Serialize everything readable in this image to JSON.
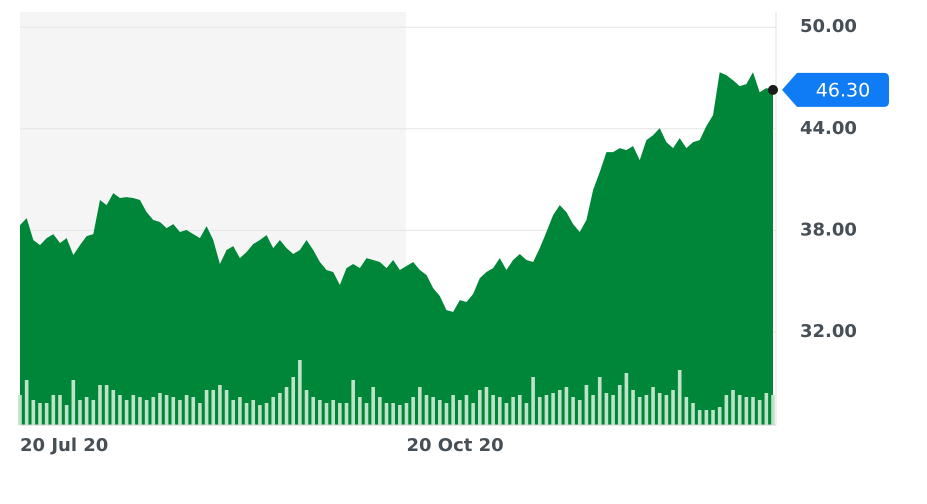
{
  "chart_data": {
    "type": "area",
    "categories": [
      "20 Jul 20",
      null,
      null,
      null,
      null,
      null,
      null,
      null,
      null,
      null,
      null,
      null,
      null,
      null,
      null,
      null,
      null,
      null,
      null,
      null,
      null,
      null,
      null,
      null,
      null,
      null,
      null,
      null,
      null,
      null,
      null,
      null,
      null,
      null,
      null,
      null,
      null,
      null,
      null,
      null,
      null,
      null,
      null,
      null,
      null,
      null,
      null,
      null,
      null,
      null,
      null,
      null,
      null,
      null,
      null,
      null,
      null,
      null,
      "20 Oct 20",
      null,
      null,
      null,
      null,
      null,
      null,
      null,
      null,
      null,
      null,
      null,
      null,
      null,
      null,
      null,
      null,
      null,
      null,
      null,
      null,
      null,
      null,
      null,
      null,
      null,
      null,
      null,
      null,
      null,
      null,
      null,
      null,
      null,
      null,
      null,
      null,
      null,
      null,
      null,
      null,
      null,
      null,
      null,
      null,
      null,
      null,
      null,
      null,
      null,
      null,
      null,
      null,
      null,
      null,
      null
    ],
    "values": [
      38.31,
      38.72,
      37.43,
      37.13,
      37.54,
      37.78,
      37.25,
      37.54,
      36.54,
      37.13,
      37.66,
      37.78,
      39.79,
      39.49,
      40.2,
      39.91,
      39.96,
      39.91,
      39.79,
      39.08,
      38.61,
      38.49,
      38.13,
      38.37,
      37.9,
      38.02,
      37.78,
      37.54,
      38.25,
      37.43,
      36.01,
      36.84,
      37.07,
      36.36,
      36.72,
      37.19,
      37.43,
      37.72,
      36.95,
      37.43,
      36.95,
      36.6,
      36.84,
      37.43,
      36.84,
      36.13,
      35.66,
      35.54,
      34.77,
      35.77,
      36.01,
      35.77,
      36.36,
      36.25,
      36.13,
      35.77,
      36.25,
      35.66,
      35.89,
      36.13,
      35.66,
      35.36,
      34.59,
      34.12,
      33.29,
      33.18,
      33.88,
      33.77,
      34.24,
      35.18,
      35.54,
      35.77,
      36.36,
      35.66,
      36.25,
      36.6,
      36.25,
      36.13,
      36.95,
      37.9,
      38.9,
      39.49,
      39.08,
      38.37,
      37.9,
      38.61,
      40.38,
      41.44,
      42.62,
      42.62,
      42.86,
      42.74,
      42.98,
      42.15,
      43.33,
      43.62,
      44.04,
      43.21,
      42.86,
      43.45,
      42.86,
      43.21,
      43.33,
      44.16,
      44.81,
      47.34,
      47.17,
      46.87,
      46.52,
      46.64,
      47.34,
      46.16,
      46.4,
      46.3
    ],
    "volume": [
      30,
      45,
      25,
      22,
      22,
      30,
      30,
      20,
      45,
      25,
      28,
      25,
      40,
      40,
      35,
      30,
      25,
      30,
      28,
      25,
      28,
      32,
      30,
      28,
      25,
      30,
      28,
      22,
      35,
      35,
      40,
      35,
      25,
      28,
      22,
      25,
      20,
      22,
      28,
      32,
      38,
      48,
      65,
      35,
      28,
      25,
      22,
      25,
      22,
      22,
      45,
      28,
      22,
      38,
      28,
      22,
      22,
      20,
      22,
      28,
      38,
      30,
      28,
      25,
      22,
      30,
      25,
      30,
      22,
      35,
      38,
      30,
      28,
      22,
      28,
      30,
      22,
      48,
      28,
      30,
      32,
      35,
      38,
      28,
      25,
      40,
      30,
      48,
      32,
      30,
      40,
      52,
      35,
      28,
      30,
      38,
      32,
      30,
      35,
      55,
      28,
      22,
      15,
      15,
      15,
      18,
      30,
      35,
      30,
      28,
      28,
      25,
      32,
      30
    ],
    "vlim": [
      0,
      70
    ],
    "color": "#008639",
    "volume_color": "#bfe3c8",
    "ylim": [
      26.5,
      50.9
    ],
    "yticks": [
      {
        "value": 32,
        "label": "32.00"
      },
      {
        "value": 38,
        "label": "38.00"
      },
      {
        "value": 44,
        "label": "44.00"
      },
      {
        "value": 50,
        "label": "50.00"
      }
    ],
    "last_label": {
      "value": 46.3,
      "label": "46.30"
    },
    "grid": true
  }
}
